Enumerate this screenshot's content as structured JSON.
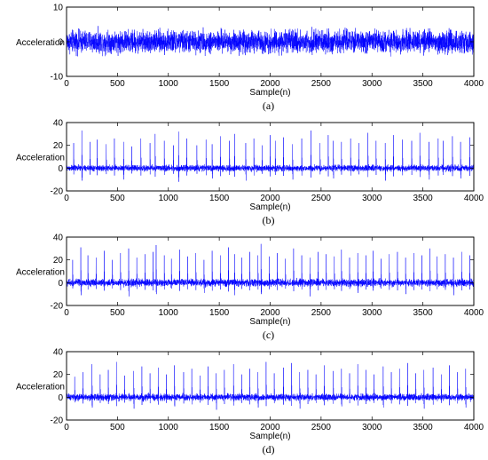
{
  "chart_data": [
    {
      "type": "line",
      "panel_label": "(a)",
      "xlabel": "Sample(n)",
      "ylabel": "Acceleration",
      "xlim": [
        0,
        4000
      ],
      "ylim": [
        -10,
        10
      ],
      "xticks": [
        0,
        500,
        1000,
        1500,
        2000,
        2500,
        3000,
        3500,
        4000
      ],
      "yticks": [
        -10,
        0,
        10
      ],
      "series": [
        {
          "color": "#0000ff",
          "n_samples": 4000,
          "baseline": 0,
          "noise_envelope": [
            -5,
            6
          ],
          "peaks_x": [],
          "peaks_y": []
        }
      ]
    },
    {
      "type": "line",
      "panel_label": "(b)",
      "xlabel": "Sample(n)",
      "ylabel": "Acceleration",
      "xlim": [
        0,
        4000
      ],
      "ylim": [
        -20,
        40
      ],
      "xticks": [
        0,
        500,
        1000,
        1500,
        2000,
        2500,
        3000,
        3500,
        4000
      ],
      "yticks": [
        -20,
        0,
        20,
        40
      ],
      "series": [
        {
          "color": "#0000ff",
          "n_samples": 4000,
          "baseline": 0,
          "noise_envelope": [
            -4,
            5
          ],
          "peaks_x": [
            70,
            150,
            230,
            300,
            390,
            470,
            560,
            640,
            730,
            820,
            870,
            960,
            1050,
            1100,
            1180,
            1280,
            1370,
            1430,
            1510,
            1600,
            1650,
            1760,
            1840,
            1920,
            2000,
            2050,
            2130,
            2220,
            2310,
            2400,
            2490,
            2570,
            2620,
            2700,
            2790,
            2870,
            2960,
            3040,
            3130,
            3210,
            3300,
            3390,
            3470,
            3560,
            3650,
            3700,
            3790,
            3870,
            3960
          ],
          "peaks_y": [
            22,
            33,
            23,
            25,
            21,
            26,
            23,
            19,
            26,
            22,
            30,
            24,
            20,
            32,
            26,
            20,
            25,
            21,
            28,
            24,
            30,
            22,
            26,
            20,
            29,
            24,
            27,
            21,
            26,
            33,
            22,
            29,
            24,
            23,
            26,
            22,
            31,
            24,
            22,
            29,
            25,
            24,
            31,
            23,
            26,
            24,
            28,
            23,
            27
          ],
          "dips_x": [
            150,
            560,
            1100,
            1430,
            1760,
            2220,
            2620,
            3130,
            3560,
            3870
          ],
          "dips_y": [
            -11,
            -10,
            -12,
            -9,
            -11,
            -10,
            -9,
            -11,
            -10,
            -9
          ]
        }
      ]
    },
    {
      "type": "line",
      "panel_label": "(c)",
      "xlabel": "Sample(n)",
      "ylabel": "Acceleration",
      "xlim": [
        0,
        4000
      ],
      "ylim": [
        -20,
        40
      ],
      "xticks": [
        0,
        500,
        1000,
        1500,
        2000,
        2500,
        3000,
        3500,
        4000
      ],
      "yticks": [
        -20,
        0,
        20,
        40
      ],
      "series": [
        {
          "color": "#0000ff",
          "n_samples": 4000,
          "baseline": 0,
          "noise_envelope": [
            -5,
            6
          ],
          "peaks_x": [
            60,
            140,
            210,
            290,
            370,
            450,
            530,
            610,
            690,
            770,
            850,
            880,
            960,
            1030,
            1110,
            1190,
            1270,
            1350,
            1430,
            1510,
            1590,
            1650,
            1720,
            1800,
            1880,
            1910,
            1990,
            2070,
            2150,
            2230,
            2310,
            2390,
            2470,
            2550,
            2630,
            2700,
            2780,
            2860,
            2940,
            3010,
            3090,
            3170,
            3250,
            3330,
            3410,
            3490,
            3570,
            3640,
            3720,
            3800,
            3880,
            3960
          ],
          "peaks_y": [
            20,
            31,
            24,
            22,
            28,
            20,
            26,
            30,
            22,
            25,
            27,
            33,
            24,
            21,
            29,
            23,
            26,
            20,
            28,
            24,
            31,
            25,
            22,
            27,
            24,
            34,
            23,
            26,
            21,
            30,
            24,
            22,
            27,
            25,
            23,
            29,
            22,
            26,
            24,
            28,
            21,
            25,
            27,
            22,
            26,
            24,
            30,
            23,
            25,
            22,
            27,
            24
          ],
          "dips_x": [
            140,
            610,
            880,
            1350,
            1650,
            1910,
            2390,
            2860,
            3330,
            3800
          ],
          "dips_y": [
            -11,
            -12,
            -10,
            -9,
            -11,
            -10,
            -12,
            -9,
            -10,
            -11
          ]
        }
      ]
    },
    {
      "type": "line",
      "panel_label": "(d)",
      "xlabel": "Sample(n)",
      "ylabel": "Acceleration",
      "xlim": [
        0,
        4000
      ],
      "ylim": [
        -20,
        40
      ],
      "xticks": [
        0,
        500,
        1000,
        1500,
        2000,
        2500,
        3000,
        3500,
        4000
      ],
      "yticks": [
        -20,
        0,
        20,
        40
      ],
      "series": [
        {
          "color": "#0000ff",
          "n_samples": 4000,
          "baseline": 0,
          "noise_envelope": [
            -5,
            5
          ],
          "peaks_x": [
            80,
            160,
            250,
            330,
            410,
            490,
            570,
            660,
            740,
            820,
            900,
            980,
            1060,
            1150,
            1230,
            1310,
            1390,
            1470,
            1550,
            1640,
            1720,
            1800,
            1880,
            1960,
            2040,
            2130,
            2210,
            2290,
            2370,
            2450,
            2530,
            2620,
            2700,
            2780,
            2860,
            2940,
            3020,
            3110,
            3190,
            3270,
            3350,
            3430,
            3510,
            3600,
            3680,
            3760,
            3840,
            3920
          ],
          "peaks_y": [
            18,
            22,
            29,
            20,
            24,
            31,
            19,
            23,
            27,
            21,
            26,
            20,
            28,
            22,
            25,
            19,
            27,
            21,
            24,
            29,
            20,
            25,
            22,
            31,
            21,
            26,
            30,
            22,
            24,
            20,
            28,
            23,
            25,
            21,
            29,
            24,
            20,
            27,
            22,
            25,
            30,
            21,
            24,
            26,
            20,
            28,
            22,
            25
          ],
          "dips_x": [
            250,
            660,
            1060,
            1470,
            1880,
            2290,
            2700,
            3110,
            3510,
            3920
          ],
          "dips_y": [
            -9,
            -10,
            -8,
            -11,
            -9,
            -10,
            -8,
            -9,
            -10,
            -9
          ]
        }
      ]
    }
  ]
}
